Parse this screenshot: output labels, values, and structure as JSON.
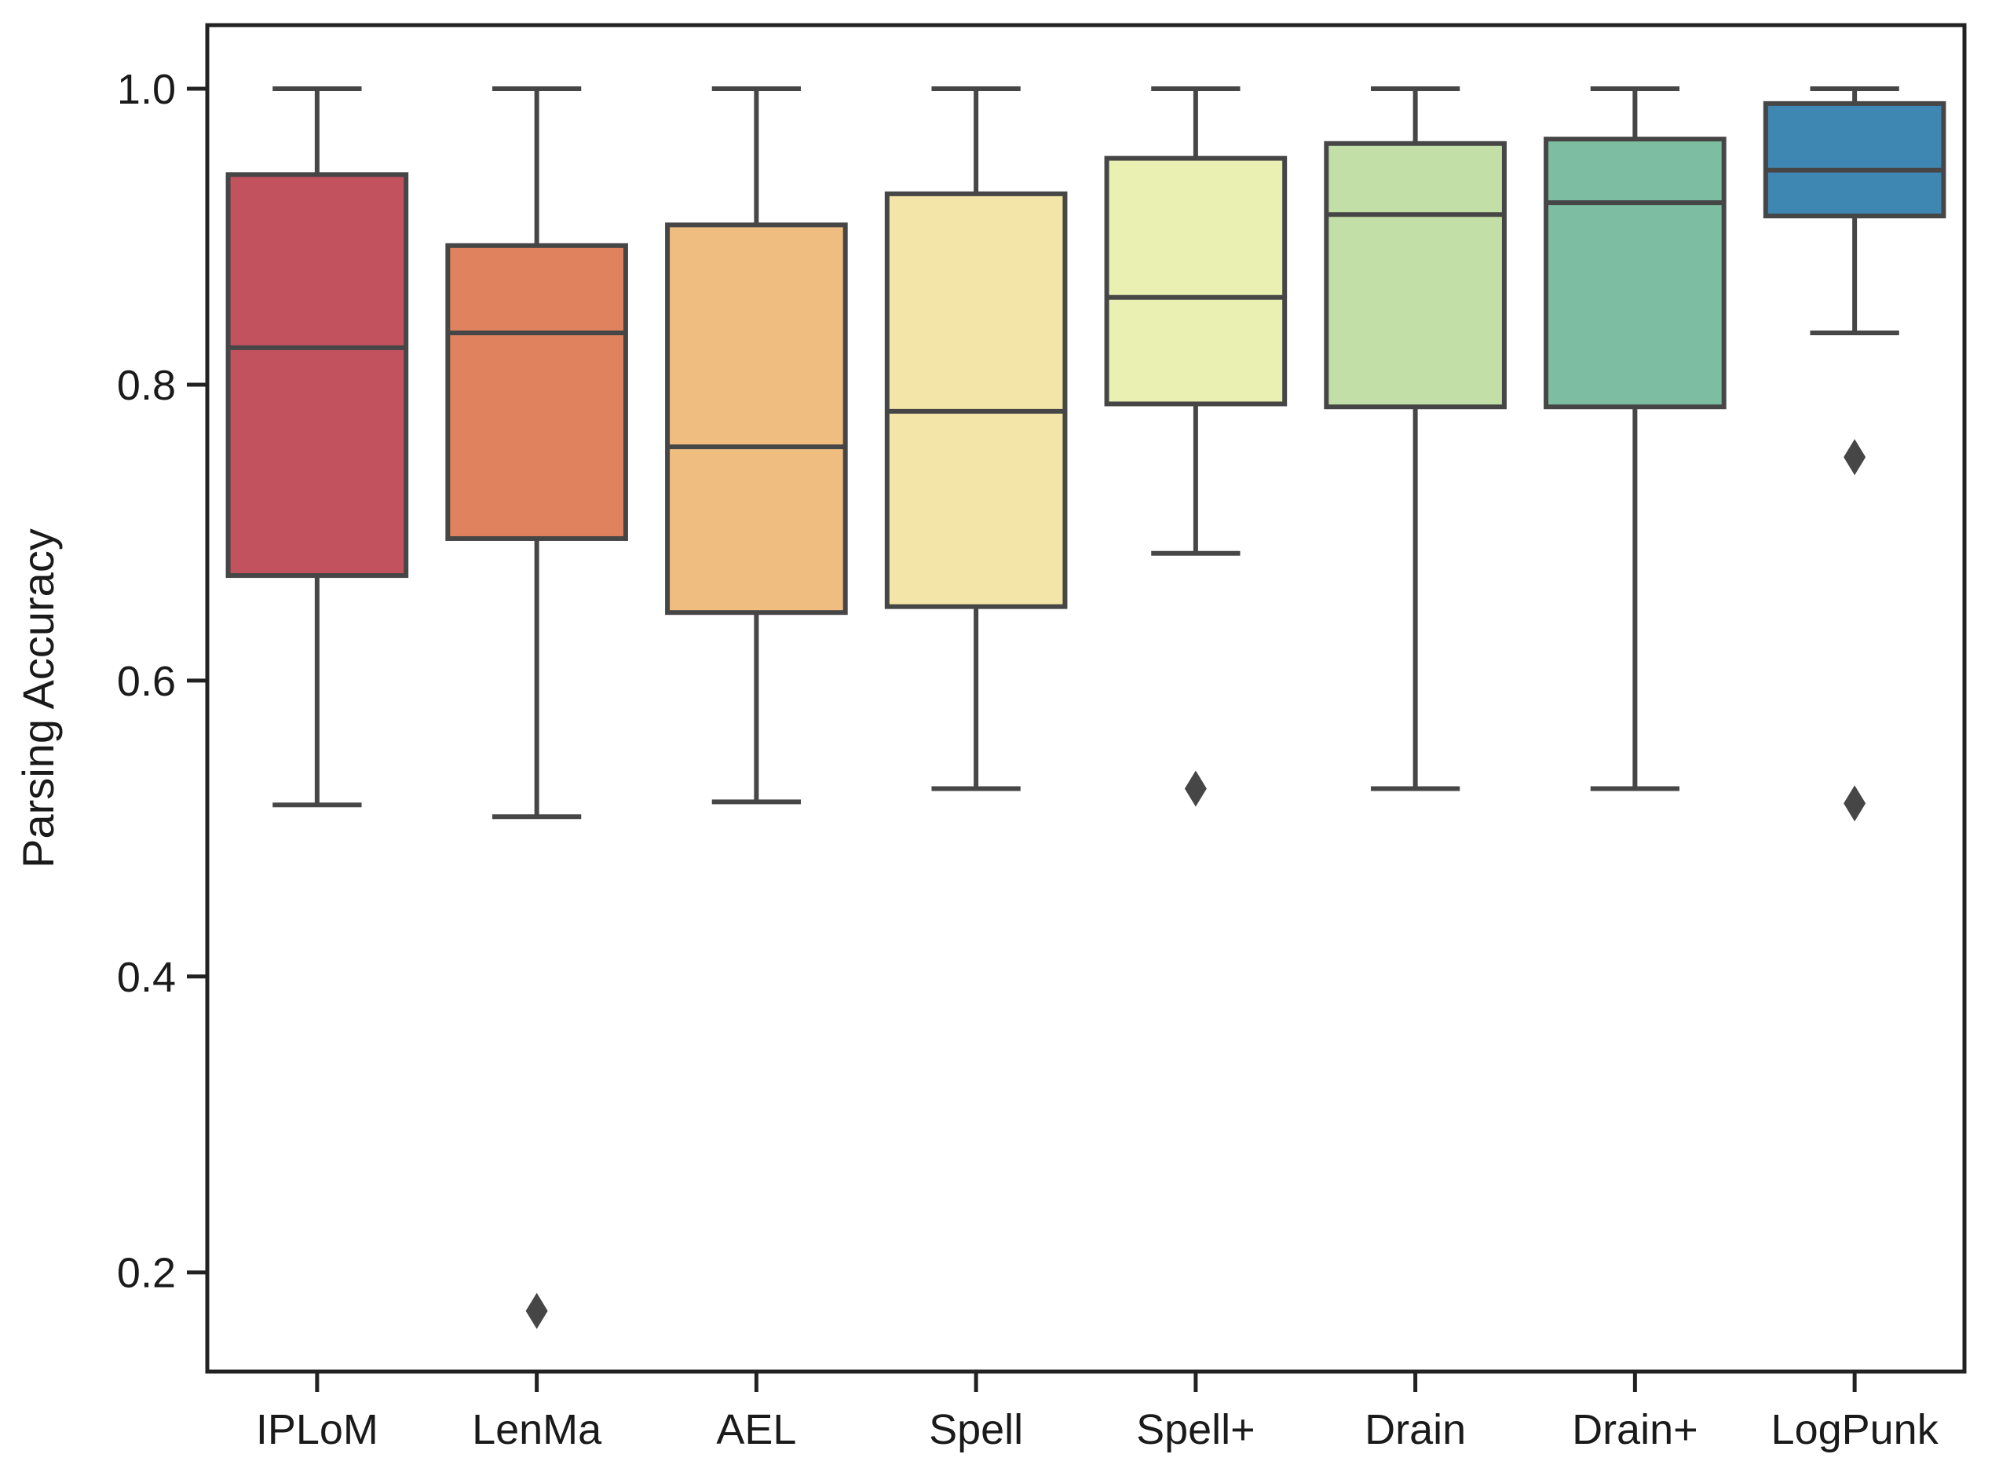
{
  "chart_data": {
    "type": "box",
    "title": "",
    "xlabel": "",
    "ylabel": "Parsing Accuracy",
    "ylim": [
      0.133,
      1.043
    ],
    "yticks": [
      {
        "value": 0.2,
        "label": "0.2"
      },
      {
        "value": 0.4,
        "label": "0.4"
      },
      {
        "value": 0.6,
        "label": "0.6"
      },
      {
        "value": 0.8,
        "label": "0.8"
      },
      {
        "value": 1.0,
        "label": "1.0"
      }
    ],
    "grid": false,
    "outlier_marker": "diamond",
    "line_color": "#464646",
    "boxes": [
      {
        "category": "IPLoM",
        "color": "#c2535e",
        "whisker_low": 0.516,
        "q1": 0.671,
        "median": 0.825,
        "q3": 0.942,
        "whisker_high": 1.0,
        "outliers": []
      },
      {
        "category": "LenMa",
        "color": "#e0825e",
        "whisker_low": 0.508,
        "q1": 0.696,
        "median": 0.835,
        "q3": 0.894,
        "whisker_high": 1.0,
        "outliers": [
          0.174
        ]
      },
      {
        "category": "AEL",
        "color": "#efbd80",
        "whisker_low": 0.518,
        "q1": 0.646,
        "median": 0.758,
        "q3": 0.908,
        "whisker_high": 1.0,
        "outliers": []
      },
      {
        "category": "Spell",
        "color": "#f3e4a7",
        "whisker_low": 0.527,
        "q1": 0.65,
        "median": 0.782,
        "q3": 0.929,
        "whisker_high": 1.0,
        "outliers": []
      },
      {
        "category": "Spell+",
        "color": "#e9f0b2",
        "whisker_low": 0.686,
        "q1": 0.787,
        "median": 0.859,
        "q3": 0.953,
        "whisker_high": 1.0,
        "outliers": [
          0.527
        ]
      },
      {
        "category": "Drain",
        "color": "#c2dfa7",
        "whisker_low": 0.527,
        "q1": 0.785,
        "median": 0.915,
        "q3": 0.963,
        "whisker_high": 1.0,
        "outliers": []
      },
      {
        "category": "Drain+",
        "color": "#7dbda2",
        "whisker_low": 0.527,
        "q1": 0.785,
        "median": 0.923,
        "q3": 0.966,
        "whisker_high": 1.0,
        "outliers": []
      },
      {
        "category": "LogPunk",
        "color": "#3f87b3",
        "whisker_low": 0.835,
        "q1": 0.914,
        "median": 0.945,
        "q3": 0.99,
        "whisker_high": 1.0,
        "outliers": [
          0.751,
          0.517
        ]
      }
    ]
  }
}
